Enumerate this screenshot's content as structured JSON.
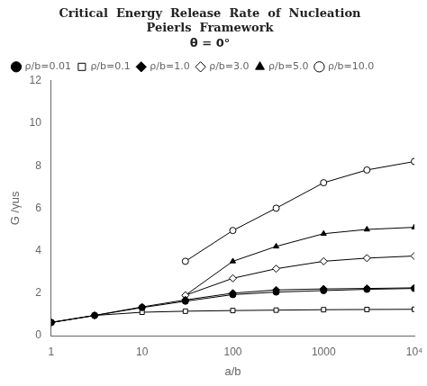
{
  "chart_data": {
    "type": "line",
    "title": [
      "Critical  Energy  Release  Rate  of  Nucleation",
      "Peierls  Framework"
    ],
    "subtitle": "θ = 0°",
    "x_label": "a/b",
    "y_label": "G /γus",
    "log": "x",
    "grid": false,
    "legend": "upper left",
    "xlim": [
      1,
      10000
    ],
    "ylim": [
      0,
      12
    ],
    "xticks": [
      1,
      10,
      100,
      1000,
      {
        "value": 10000,
        "label": "10⁴"
      }
    ],
    "yticks": [
      0,
      2,
      4,
      6,
      8,
      10,
      12
    ],
    "series": [
      {
        "name": "ρ/b=0.01",
        "color": "black",
        "marker": "circle_filled",
        "x": [
          1,
          3,
          10,
          30,
          100,
          300,
          1000,
          3000,
          10000
        ],
        "values": [
          0.62,
          0.95,
          1.32,
          1.62,
          1.93,
          2.05,
          2.12,
          2.18,
          2.22
        ]
      },
      {
        "name": "ρ/b=0.1",
        "color": "black",
        "marker": "square_open",
        "x": [
          1,
          3,
          10,
          30,
          100,
          300,
          1000,
          3000,
          10000
        ],
        "values": [
          0.62,
          0.95,
          1.1,
          1.15,
          1.18,
          1.2,
          1.22,
          1.23,
          1.24
        ]
      },
      {
        "name": "ρ/b=1.0",
        "color": "black",
        "marker": "diamond_filled",
        "x": [
          1,
          3,
          10,
          30,
          100,
          300,
          1000,
          3000,
          10000
        ],
        "values": [
          0.62,
          0.95,
          1.35,
          1.68,
          2.0,
          2.15,
          2.2,
          2.22,
          2.25
        ]
      },
      {
        "name": "ρ/b=3.0",
        "color": "black",
        "marker": "diamond_open",
        "x": [
          30,
          100,
          300,
          1000,
          3000,
          10000
        ],
        "values": [
          1.9,
          2.7,
          3.15,
          3.5,
          3.65,
          3.75
        ]
      },
      {
        "name": "ρ/b=5.0",
        "color": "black",
        "marker": "triangle_filled",
        "x": [
          30,
          100,
          300,
          1000,
          3000,
          10000
        ],
        "values": [
          1.9,
          3.5,
          4.2,
          4.8,
          5.0,
          5.1
        ]
      },
      {
        "name": "ρ/b=10.0",
        "color": "black",
        "marker": "circle_open",
        "x": [
          30,
          100,
          300,
          1000,
          3000,
          10000
        ],
        "values": [
          3.5,
          4.95,
          6.0,
          7.2,
          7.8,
          8.2
        ]
      }
    ]
  }
}
